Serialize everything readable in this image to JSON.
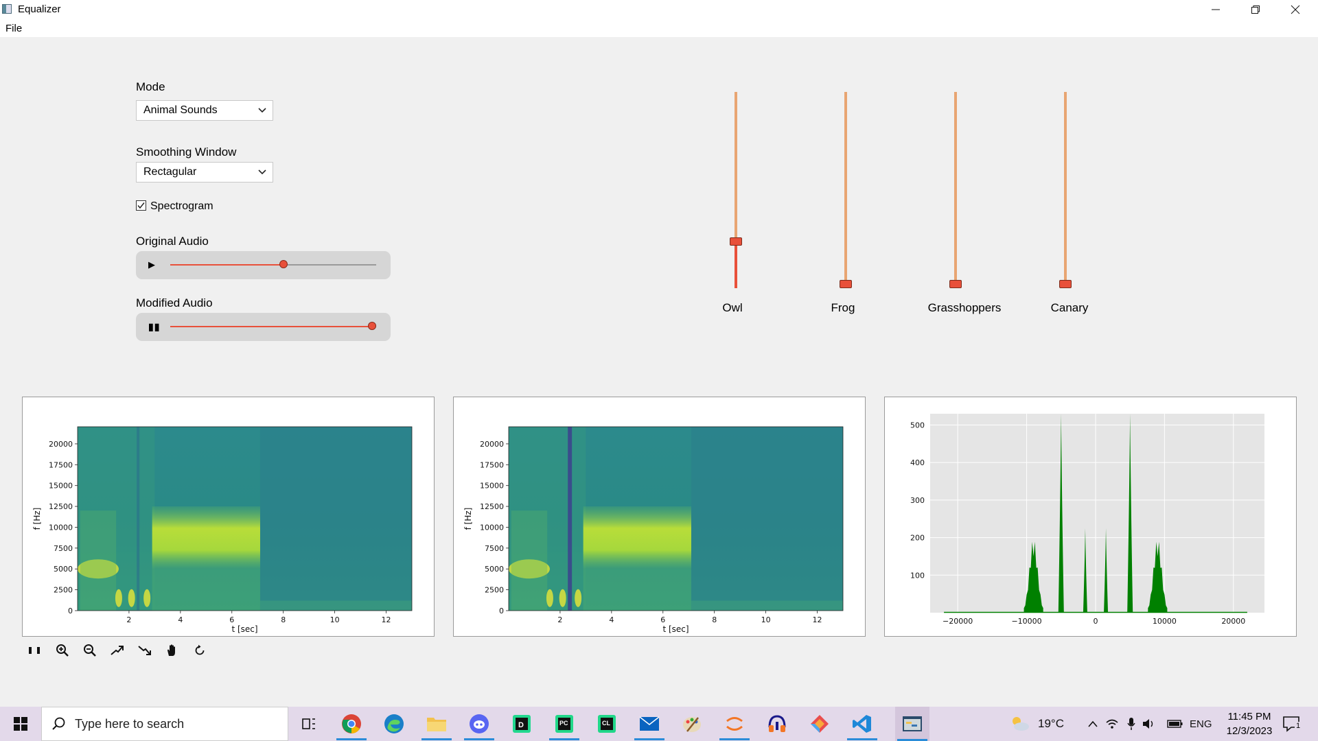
{
  "window": {
    "title": "Equalizer"
  },
  "menu": {
    "file": "File"
  },
  "controls": {
    "mode_label": "Mode",
    "mode_value": "Animal Sounds",
    "window_label": "Smoothing Window",
    "window_value": "Rectagular",
    "spectrogram_label": "Spectrogram",
    "spectrogram_checked": true,
    "original_label": "Original Audio",
    "original_progress": 0.55,
    "modified_label": "Modified Audio",
    "modified_progress": 0.98
  },
  "sliders": [
    {
      "label": "Owl",
      "value": 0.22
    },
    {
      "label": "Frog",
      "value": 0.0
    },
    {
      "label": "Grasshoppers",
      "value": 0.0
    },
    {
      "label": "Canary",
      "value": 0.0
    }
  ],
  "chart_data": [
    {
      "type": "heatmap",
      "title": "",
      "xlabel": "t [sec]",
      "ylabel": "f [Hz]",
      "xticks": [
        "2",
        "4",
        "6",
        "8",
        "10",
        "12"
      ],
      "yticks": [
        "0",
        "2500",
        "5000",
        "7500",
        "10000",
        "12500",
        "15000",
        "17500",
        "20000"
      ],
      "xlim": [
        0,
        13
      ],
      "ylim": [
        0,
        22050
      ]
    },
    {
      "type": "heatmap",
      "title": "",
      "xlabel": "t [sec]",
      "ylabel": "f [Hz]",
      "xticks": [
        "2",
        "4",
        "6",
        "8",
        "10",
        "12"
      ],
      "yticks": [
        "0",
        "2500",
        "5000",
        "7500",
        "10000",
        "12500",
        "15000",
        "17500",
        "20000"
      ],
      "xlim": [
        0,
        13
      ],
      "ylim": [
        0,
        22050
      ]
    },
    {
      "type": "area",
      "title": "",
      "xlabel": "",
      "ylabel": "",
      "xticks": [
        "−20000",
        "−10000",
        "0",
        "10000",
        "20000"
      ],
      "yticks": [
        "100",
        "200",
        "300",
        "400",
        "500"
      ],
      "xlim": [
        -24000,
        24500
      ],
      "ylim": [
        0,
        530
      ],
      "grid": true,
      "color": "#008000",
      "peaks": [
        {
          "x": -9000,
          "y": 200,
          "width": 1400
        },
        {
          "x": -5000,
          "y": 530,
          "width": 400
        },
        {
          "x": -1500,
          "y": 225,
          "width": 300
        },
        {
          "x": 1500,
          "y": 225,
          "width": 300
        },
        {
          "x": 5000,
          "y": 530,
          "width": 400
        },
        {
          "x": 9000,
          "y": 200,
          "width": 1400
        }
      ]
    }
  ],
  "taskbar": {
    "search_placeholder": "Type here to search",
    "temperature": "19°C",
    "language": "ENG",
    "time": "11:45 PM",
    "date": "12/3/2023",
    "notifications": "1"
  }
}
